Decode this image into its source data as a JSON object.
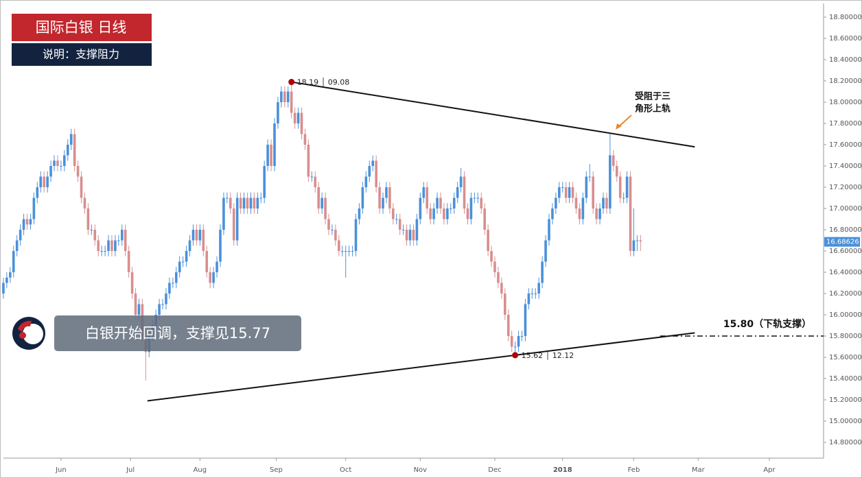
{
  "chart_data": {
    "type": "candlestick",
    "title": "国际白银  日线",
    "subtitle": "说明：支撑阻力",
    "callout": "白银开始回调，支撑见15.77",
    "peak_label": "18.19 │ 09.08",
    "trough_label": "15.62 │ 12.12",
    "resistance_note": [
      "受阻于三",
      "角形上轨"
    ],
    "support_label": "15.80（下轨支撑）",
    "support_level": 15.8,
    "last_price": 16.68626,
    "up_color": "#4a90d9",
    "down_color": "#d88e8e",
    "xlim": [
      -1,
      242
    ],
    "ylim": [
      14.8,
      18.8
    ],
    "xticks": [
      {
        "value": 17,
        "label": "Jun"
      },
      {
        "value": 37.5,
        "label": "Jul"
      },
      {
        "value": 58,
        "label": "Aug"
      },
      {
        "value": 80.5,
        "label": "Sep"
      },
      {
        "value": 101,
        "label": "Oct"
      },
      {
        "value": 123,
        "label": "Nov"
      },
      {
        "value": 145,
        "label": "Dec"
      },
      {
        "value": 165,
        "label": "2018"
      },
      {
        "value": 186,
        "label": "Feb"
      },
      {
        "value": 205,
        "label": "Mar"
      },
      {
        "value": 226,
        "label": "Apr"
      }
    ],
    "yticks": [
      {
        "value": 14.8,
        "label": "14.80000"
      },
      {
        "value": 15.0,
        "label": "15.00000"
      },
      {
        "value": 15.2,
        "label": "15.20000"
      },
      {
        "value": 15.4,
        "label": "15.40000"
      },
      {
        "value": 15.6,
        "label": "15.60000"
      },
      {
        "value": 15.8,
        "label": "15.80000"
      },
      {
        "value": 16.0,
        "label": "16.00000"
      },
      {
        "value": 16.2,
        "label": "16.20000"
      },
      {
        "value": 16.4,
        "label": "16.40000"
      },
      {
        "value": 16.6,
        "label": "16.60000"
      },
      {
        "value": 16.8,
        "label": "16.80000"
      },
      {
        "value": 17.0,
        "label": "17.00000"
      },
      {
        "value": 17.2,
        "label": "17.20000"
      },
      {
        "value": 17.4,
        "label": "17.40000"
      },
      {
        "value": 17.6,
        "label": "17.60000"
      },
      {
        "value": 17.8,
        "label": "17.80000"
      },
      {
        "value": 18.0,
        "label": "18.00000"
      },
      {
        "value": 18.2,
        "label": "18.20000"
      },
      {
        "value": 18.4,
        "label": "18.40000"
      },
      {
        "value": 18.6,
        "label": "18.60000"
      },
      {
        "value": 18.8,
        "label": "18.80000"
      }
    ],
    "trendlines": [
      {
        "x": [
          85,
          204
        ],
        "y": [
          18.19,
          17.58
        ]
      },
      {
        "x": [
          42.5,
          204
        ],
        "y": [
          15.19,
          15.83
        ]
      }
    ],
    "peak_index": 85,
    "trough_index": 151,
    "open": [
      16.2,
      16.3,
      16.35,
      16.4,
      16.6,
      16.7,
      16.8,
      16.9,
      16.85,
      16.9,
      17.1,
      17.2,
      17.3,
      17.2,
      17.3,
      17.4,
      17.45,
      17.4,
      17.4,
      17.5,
      17.6,
      17.7,
      17.4,
      17.3,
      17.1,
      17.0,
      16.8,
      16.8,
      16.7,
      16.6,
      16.6,
      16.6,
      16.7,
      16.6,
      16.7,
      16.7,
      16.8,
      16.6,
      16.4,
      16.2,
      16.0,
      16.1,
      15.8,
      15.65,
      15.8,
      15.9,
      16.0,
      16.1,
      16.1,
      16.2,
      16.3,
      16.3,
      16.4,
      16.5,
      16.5,
      16.6,
      16.7,
      16.8,
      16.7,
      16.8,
      16.6,
      16.4,
      16.3,
      16.4,
      16.5,
      16.8,
      17.1,
      17.1,
      17.0,
      16.7,
      17.1,
      17.0,
      17.1,
      17.0,
      17.1,
      17.0,
      17.1,
      17.1,
      17.4,
      17.6,
      17.4,
      17.8,
      18.0,
      18.1,
      18.0,
      18.1,
      17.9,
      17.8,
      17.9,
      17.7,
      17.6,
      17.3,
      17.3,
      17.2,
      17.0,
      17.1,
      16.9,
      16.8,
      16.8,
      16.7,
      16.6,
      16.6,
      16.6,
      16.6,
      16.6,
      16.9,
      17.0,
      17.2,
      17.3,
      17.4,
      17.45,
      17.2,
      17.0,
      17.1,
      17.2,
      17.0,
      16.9,
      16.9,
      16.8,
      16.8,
      16.7,
      16.8,
      16.7,
      16.9,
      17.1,
      17.2,
      17.0,
      16.9,
      17.0,
      17.1,
      17.0,
      16.9,
      17.0,
      17.0,
      17.1,
      17.2,
      17.3,
      17.0,
      16.9,
      17.1,
      17.1,
      17.1,
      17.0,
      16.8,
      16.6,
      16.5,
      16.4,
      16.3,
      16.2,
      16.0,
      15.8,
      15.7,
      15.7,
      15.8,
      15.8,
      16.1,
      16.2,
      16.2,
      16.2,
      16.3,
      16.5,
      16.7,
      16.9,
      17.0,
      17.1,
      17.2,
      17.2,
      17.1,
      17.2,
      17.1,
      17.0,
      16.9,
      17.1,
      17.3,
      17.3,
      17.0,
      16.9,
      17.0,
      17.1,
      17.0,
      17.5,
      17.4,
      17.3,
      17.1,
      17.1,
      17.3,
      16.6,
      16.7,
      16.7
    ],
    "high": [
      16.35,
      16.4,
      16.45,
      16.65,
      16.75,
      16.85,
      16.95,
      16.95,
      16.95,
      17.15,
      17.25,
      17.35,
      17.35,
      17.35,
      17.45,
      17.5,
      17.5,
      17.45,
      17.55,
      17.65,
      17.75,
      17.75,
      17.45,
      17.35,
      17.15,
      17.05,
      16.85,
      16.85,
      16.75,
      16.65,
      16.65,
      16.75,
      16.75,
      16.75,
      16.75,
      16.85,
      16.85,
      16.65,
      16.45,
      16.25,
      16.15,
      16.15,
      15.85,
      15.85,
      15.95,
      16.05,
      16.15,
      16.15,
      16.25,
      16.35,
      16.35,
      16.45,
      16.55,
      16.55,
      16.65,
      16.75,
      16.85,
      16.85,
      16.85,
      16.85,
      16.65,
      16.45,
      16.45,
      16.55,
      16.85,
      17.15,
      17.15,
      17.15,
      17.05,
      17.15,
      17.15,
      17.15,
      17.15,
      17.15,
      17.15,
      17.15,
      17.15,
      17.45,
      17.65,
      17.65,
      17.85,
      18.05,
      18.15,
      18.15,
      18.15,
      18.19,
      17.95,
      17.95,
      17.95,
      17.75,
      17.65,
      17.35,
      17.35,
      17.25,
      17.15,
      17.15,
      16.95,
      16.85,
      16.85,
      16.75,
      16.65,
      16.65,
      16.65,
      16.65,
      16.95,
      17.05,
      17.25,
      17.35,
      17.45,
      17.5,
      17.5,
      17.25,
      17.15,
      17.25,
      17.25,
      17.05,
      16.95,
      16.95,
      16.85,
      16.85,
      16.85,
      16.85,
      16.95,
      17.15,
      17.25,
      17.25,
      17.05,
      17.05,
      17.15,
      17.15,
      17.05,
      17.05,
      17.05,
      17.15,
      17.25,
      17.38,
      17.35,
      17.05,
      17.15,
      17.15,
      17.15,
      17.15,
      17.05,
      16.85,
      16.65,
      16.55,
      16.45,
      16.35,
      16.25,
      16.05,
      15.85,
      15.75,
      15.85,
      15.85,
      16.15,
      16.25,
      16.25,
      16.25,
      16.35,
      16.55,
      16.75,
      16.95,
      17.05,
      17.15,
      17.25,
      17.25,
      17.25,
      17.25,
      17.25,
      17.15,
      17.05,
      17.15,
      17.35,
      17.42,
      17.35,
      17.05,
      17.05,
      17.15,
      17.15,
      17.7,
      17.55,
      17.45,
      17.35,
      17.15,
      17.35,
      17.35,
      17.0,
      16.75,
      16.75
    ],
    "low": [
      16.15,
      16.25,
      16.3,
      16.35,
      16.55,
      16.65,
      16.75,
      16.8,
      16.8,
      16.85,
      17.05,
      17.15,
      17.15,
      17.15,
      17.25,
      17.35,
      17.35,
      17.35,
      17.35,
      17.45,
      17.55,
      17.35,
      17.25,
      17.05,
      16.95,
      16.75,
      16.75,
      16.65,
      16.55,
      16.55,
      16.55,
      16.55,
      16.55,
      16.55,
      16.65,
      16.65,
      16.55,
      16.35,
      16.15,
      15.95,
      15.95,
      15.75,
      15.38,
      15.6,
      15.75,
      15.85,
      15.95,
      16.05,
      16.05,
      16.15,
      16.25,
      16.25,
      16.35,
      16.45,
      16.45,
      16.55,
      16.65,
      16.65,
      16.65,
      16.55,
      16.35,
      16.25,
      16.25,
      16.35,
      16.45,
      16.75,
      17.05,
      16.95,
      16.65,
      16.65,
      16.95,
      16.95,
      16.95,
      16.95,
      16.95,
      16.95,
      17.05,
      17.05,
      17.35,
      17.35,
      17.35,
      17.75,
      17.95,
      17.95,
      17.95,
      17.85,
      17.75,
      17.75,
      17.65,
      17.55,
      17.25,
      17.25,
      17.15,
      16.95,
      16.95,
      16.85,
      16.75,
      16.75,
      16.65,
      16.55,
      16.55,
      16.35,
      16.55,
      16.55,
      16.55,
      16.85,
      16.95,
      17.15,
      17.25,
      17.35,
      17.15,
      16.95,
      16.95,
      17.05,
      16.95,
      16.85,
      16.85,
      16.75,
      16.75,
      16.65,
      16.65,
      16.65,
      16.65,
      16.85,
      17.05,
      16.95,
      16.85,
      16.85,
      16.95,
      16.95,
      16.85,
      16.85,
      16.95,
      16.95,
      17.05,
      17.15,
      16.95,
      16.85,
      16.85,
      17.05,
      17.05,
      16.95,
      16.75,
      16.55,
      16.45,
      16.35,
      16.25,
      16.15,
      15.95,
      15.75,
      15.65,
      15.62,
      15.65,
      15.75,
      15.75,
      16.05,
      16.15,
      16.15,
      16.15,
      16.25,
      16.45,
      16.65,
      16.85,
      16.95,
      17.05,
      17.15,
      17.05,
      17.05,
      17.05,
      16.95,
      16.85,
      16.85,
      17.05,
      17.25,
      16.95,
      16.85,
      16.85,
      16.95,
      16.95,
      16.95,
      17.35,
      17.25,
      17.05,
      17.05,
      17.05,
      16.55,
      16.55,
      16.6,
      16.6
    ],
    "close": [
      16.3,
      16.35,
      16.4,
      16.6,
      16.7,
      16.8,
      16.9,
      16.85,
      16.9,
      17.1,
      17.2,
      17.3,
      17.2,
      17.3,
      17.4,
      17.45,
      17.4,
      17.4,
      17.5,
      17.6,
      17.7,
      17.4,
      17.3,
      17.1,
      17.0,
      16.8,
      16.8,
      16.7,
      16.6,
      16.6,
      16.6,
      16.7,
      16.6,
      16.7,
      16.7,
      16.8,
      16.6,
      16.4,
      16.2,
      16.0,
      16.1,
      15.8,
      15.65,
      15.8,
      15.9,
      16.0,
      16.1,
      16.1,
      16.2,
      16.3,
      16.3,
      16.4,
      16.5,
      16.5,
      16.6,
      16.7,
      16.8,
      16.7,
      16.8,
      16.6,
      16.4,
      16.3,
      16.4,
      16.5,
      16.8,
      17.1,
      17.1,
      17.0,
      16.7,
      17.1,
      17.0,
      17.1,
      17.0,
      17.1,
      17.0,
      17.1,
      17.1,
      17.4,
      17.6,
      17.4,
      17.8,
      18.0,
      18.1,
      18.0,
      18.1,
      17.9,
      17.8,
      17.9,
      17.7,
      17.6,
      17.3,
      17.3,
      17.2,
      17.0,
      17.1,
      16.9,
      16.8,
      16.8,
      16.7,
      16.6,
      16.6,
      16.6,
      16.6,
      16.6,
      16.9,
      17.0,
      17.2,
      17.3,
      17.4,
      17.45,
      17.2,
      17.0,
      17.1,
      17.2,
      17.0,
      16.9,
      16.9,
      16.8,
      16.8,
      16.7,
      16.8,
      16.7,
      16.9,
      17.1,
      17.2,
      17.0,
      16.9,
      17.0,
      17.1,
      17.0,
      16.9,
      17.0,
      17.0,
      17.1,
      17.2,
      17.3,
      17.0,
      16.9,
      17.1,
      17.1,
      17.1,
      17.0,
      16.8,
      16.6,
      16.5,
      16.4,
      16.3,
      16.2,
      16.0,
      15.8,
      15.7,
      15.7,
      15.8,
      15.8,
      16.1,
      16.2,
      16.2,
      16.2,
      16.3,
      16.5,
      16.7,
      16.9,
      17.0,
      17.1,
      17.2,
      17.2,
      17.1,
      17.2,
      17.1,
      17.0,
      16.9,
      17.1,
      17.3,
      17.3,
      17.0,
      16.9,
      17.0,
      17.1,
      17.0,
      17.5,
      17.4,
      17.3,
      17.1,
      17.1,
      17.3,
      16.6,
      16.7,
      16.7,
      16.69
    ]
  }
}
